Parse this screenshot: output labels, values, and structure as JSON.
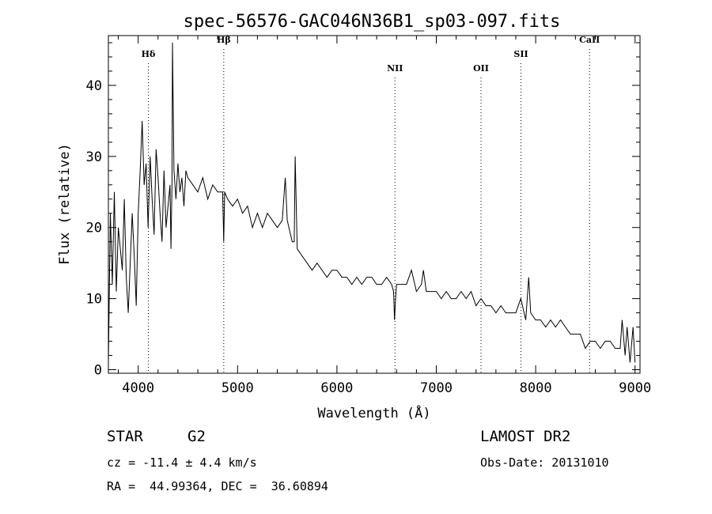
{
  "page": {
    "title": "spec-56576-GAC046N36B1_sp03-097.fits",
    "object_class": "STAR",
    "subclass": "G2",
    "survey": "LAMOST DR2",
    "redshift_text": "cz = -11.4 ± 4.4 km/s",
    "obs_date_text": "Obs-Date: 20131010",
    "coords_text": "RA =  44.99364, DEC =  36.60894"
  },
  "chart_data": {
    "type": "line",
    "title": "spec-56576-GAC046N36B1_sp03-097.fits",
    "xlabel": "Wavelength (Å)",
    "ylabel": "Flux (relative)",
    "xlim": [
      3700,
      9050
    ],
    "ylim": [
      -0.5,
      47
    ],
    "xticks": [
      4000,
      5000,
      6000,
      7000,
      8000,
      9000
    ],
    "yticks": [
      0,
      10,
      20,
      30,
      40
    ],
    "grid": false,
    "line_color": "#000000",
    "marker_color": "#000000",
    "spectral_lines": [
      {
        "label": "Hδ",
        "wavelength": 4102,
        "label_y": 44
      },
      {
        "label": "Hβ",
        "wavelength": 4861,
        "label_y": 46
      },
      {
        "label": "NII",
        "wavelength": 6584,
        "label_y": 42
      },
      {
        "label": "OII",
        "wavelength": 7450,
        "label_y": 42
      },
      {
        "label": "SII",
        "wavelength": 7852,
        "label_y": 44
      },
      {
        "label": "CaII",
        "wavelength": 8542,
        "label_y": 46
      }
    ],
    "series": [
      {
        "x": [
          3700,
          3720,
          3740,
          3760,
          3780,
          3800,
          3820,
          3840,
          3860,
          3880,
          3900,
          3920,
          3940,
          3960,
          3980,
          4000,
          4020,
          4040,
          4060,
          4080,
          4100,
          4120,
          4140,
          4160,
          4180,
          4200,
          4220,
          4240,
          4260,
          4280,
          4300,
          4320,
          4330,
          4340,
          4345,
          4360,
          4380,
          4400,
          4420,
          4440,
          4460,
          4480,
          4500,
          4550,
          4600,
          4650,
          4700,
          4750,
          4800,
          4850,
          4861,
          4870,
          4900,
          4950,
          5000,
          5050,
          5100,
          5150,
          5200,
          5250,
          5300,
          5350,
          5400,
          5450,
          5470,
          5480,
          5500,
          5550,
          5570,
          5580,
          5600,
          5650,
          5700,
          5750,
          5800,
          5850,
          5900,
          5950,
          6000,
          6050,
          6100,
          6150,
          6200,
          6250,
          6300,
          6350,
          6400,
          6450,
          6500,
          6550,
          6570,
          6580,
          6590,
          6600,
          6650,
          6700,
          6750,
          6800,
          6850,
          6870,
          6900,
          6950,
          7000,
          7050,
          7100,
          7150,
          7200,
          7250,
          7300,
          7350,
          7400,
          7450,
          7500,
          7550,
          7600,
          7650,
          7700,
          7750,
          7800,
          7850,
          7900,
          7930,
          7950,
          8000,
          8050,
          8100,
          8150,
          8200,
          8250,
          8300,
          8350,
          8400,
          8450,
          8500,
          8550,
          8600,
          8650,
          8700,
          8750,
          8800,
          8850,
          8870,
          8900,
          8920,
          8950,
          8980,
          9000
        ],
        "y": [
          1,
          22,
          12,
          25,
          11,
          20,
          17,
          14,
          24,
          13,
          8,
          15,
          22,
          16,
          9,
          22,
          28,
          35,
          26,
          29,
          20,
          30,
          24,
          19,
          31,
          27,
          22,
          18,
          28,
          20,
          23,
          26,
          17,
          26,
          46,
          28,
          24,
          29,
          25,
          27,
          23,
          28,
          27,
          26,
          25,
          27,
          24,
          26,
          25,
          25,
          18,
          25,
          24,
          23,
          24,
          22,
          23,
          20,
          22,
          20,
          22,
          21,
          20,
          21,
          25,
          27,
          21,
          18,
          18,
          30,
          17,
          16,
          15,
          14,
          15,
          14,
          13,
          14,
          14,
          13,
          13,
          12,
          13,
          12,
          13,
          13,
          12,
          12,
          13,
          12,
          11,
          7,
          10,
          12,
          12,
          12,
          14,
          11,
          12,
          14,
          11,
          11,
          11,
          10,
          11,
          10,
          10,
          11,
          10,
          11,
          9,
          10,
          9,
          9,
          8,
          9,
          8,
          8,
          8,
          10,
          7,
          13,
          8,
          7,
          7,
          6,
          7,
          6,
          7,
          6,
          5,
          5,
          5,
          3,
          4,
          4,
          3,
          4,
          4,
          3,
          3,
          7,
          2,
          6,
          1,
          6,
          1
        ]
      }
    ]
  }
}
